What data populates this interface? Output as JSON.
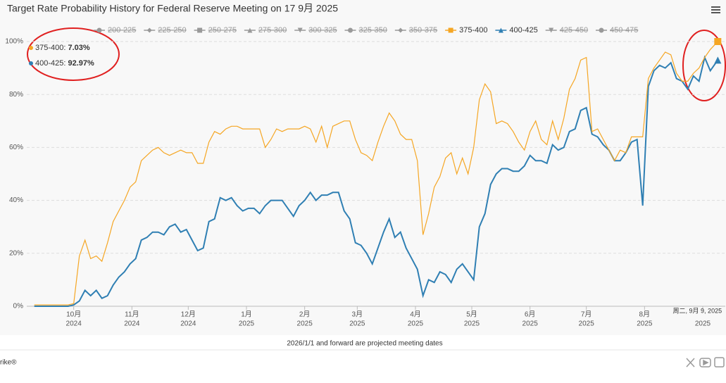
{
  "chart_data": {
    "type": "line",
    "stacking": "normal",
    "title": "Target Rate Probability History for Federal Reserve Meeting on 17 9月 2025",
    "footnote": "2026/1/1 and forward are projected meeting dates",
    "brand": "rike®",
    "crosshair_label": "周二, 9月 9, 2025",
    "tooltip_labels": [
      "7.03%",
      "92.97%"
    ],
    "xlim": [
      "2024-09-06",
      "2025-09-13"
    ],
    "ylim": [
      0,
      100
    ],
    "grid": true,
    "yticks": [
      {
        "value": 0,
        "label": "0%"
      },
      {
        "value": 20,
        "label": "20%"
      },
      {
        "value": 40,
        "label": "40%"
      },
      {
        "value": 60,
        "label": "60%"
      },
      {
        "value": 80,
        "label": "80%"
      },
      {
        "value": 100,
        "label": "100%"
      }
    ],
    "xticks": [
      {
        "value": "2024-10-01",
        "label": [
          "10月",
          "2024"
        ]
      },
      {
        "value": "2024-11-01",
        "label": [
          "11月",
          "2024"
        ]
      },
      {
        "value": "2024-12-01",
        "label": [
          "12月",
          "2024"
        ]
      },
      {
        "value": "2025-01-01",
        "label": [
          "1月",
          "2025"
        ]
      },
      {
        "value": "2025-02-01",
        "label": [
          "2月",
          "2025"
        ]
      },
      {
        "value": "2025-03-01",
        "label": [
          "3月",
          "2025"
        ]
      },
      {
        "value": "2025-04-01",
        "label": [
          "4月",
          "2025"
        ]
      },
      {
        "value": "2025-05-01",
        "label": [
          "5月",
          "2025"
        ]
      },
      {
        "value": "2025-06-01",
        "label": [
          "6月",
          "2025"
        ]
      },
      {
        "value": "2025-07-01",
        "label": [
          "7月",
          "2025"
        ]
      },
      {
        "value": "2025-08-01",
        "label": [
          "8月",
          "2025"
        ]
      },
      {
        "value": "2025-09-01",
        "label": [
          "2025"
        ]
      }
    ],
    "x": [
      "2024-09-10",
      "2024-09-13",
      "2024-09-16",
      "2024-09-19",
      "2024-09-22",
      "2024-09-25",
      "2024-09-28",
      "2024-10-01",
      "2024-10-04",
      "2024-10-07",
      "2024-10-10",
      "2024-10-13",
      "2024-10-16",
      "2024-10-19",
      "2024-10-22",
      "2024-10-25",
      "2024-10-28",
      "2024-10-31",
      "2024-11-03",
      "2024-11-06",
      "2024-11-09",
      "2024-11-12",
      "2024-11-15",
      "2024-11-18",
      "2024-11-21",
      "2024-11-24",
      "2024-11-27",
      "2024-11-30",
      "2024-12-03",
      "2024-12-06",
      "2024-12-09",
      "2024-12-12",
      "2024-12-15",
      "2024-12-18",
      "2024-12-21",
      "2024-12-24",
      "2024-12-27",
      "2024-12-30",
      "2025-01-02",
      "2025-01-05",
      "2025-01-08",
      "2025-01-11",
      "2025-01-14",
      "2025-01-17",
      "2025-01-20",
      "2025-01-23",
      "2025-01-26",
      "2025-01-29",
      "2025-02-01",
      "2025-02-04",
      "2025-02-07",
      "2025-02-10",
      "2025-02-13",
      "2025-02-16",
      "2025-02-19",
      "2025-02-22",
      "2025-02-25",
      "2025-02-28",
      "2025-03-03",
      "2025-03-06",
      "2025-03-09",
      "2025-03-12",
      "2025-03-15",
      "2025-03-18",
      "2025-03-21",
      "2025-03-24",
      "2025-03-27",
      "2025-03-30",
      "2025-04-02",
      "2025-04-05",
      "2025-04-08",
      "2025-04-11",
      "2025-04-14",
      "2025-04-17",
      "2025-04-20",
      "2025-04-23",
      "2025-04-26",
      "2025-04-29",
      "2025-05-02",
      "2025-05-05",
      "2025-05-08",
      "2025-05-11",
      "2025-05-14",
      "2025-05-17",
      "2025-05-20",
      "2025-05-23",
      "2025-05-26",
      "2025-05-29",
      "2025-06-01",
      "2025-06-04",
      "2025-06-07",
      "2025-06-10",
      "2025-06-13",
      "2025-06-16",
      "2025-06-19",
      "2025-06-22",
      "2025-06-25",
      "2025-06-28",
      "2025-07-01",
      "2025-07-04",
      "2025-07-07",
      "2025-07-10",
      "2025-07-13",
      "2025-07-16",
      "2025-07-19",
      "2025-07-22",
      "2025-07-25",
      "2025-07-28",
      "2025-07-31",
      "2025-08-03",
      "2025-08-06",
      "2025-08-09",
      "2025-08-12",
      "2025-08-15",
      "2025-08-18",
      "2025-08-21",
      "2025-08-24",
      "2025-08-27",
      "2025-08-30",
      "2025-09-02",
      "2025-09-05",
      "2025-09-09"
    ],
    "series": [
      {
        "name": "200-225",
        "symbol": "circle",
        "visible": false
      },
      {
        "name": "225-250",
        "symbol": "diamond",
        "visible": false
      },
      {
        "name": "250-275",
        "symbol": "square",
        "visible": false
      },
      {
        "name": "275-300",
        "symbol": "triangle",
        "visible": false
      },
      {
        "name": "300-325",
        "symbol": "triangle-down",
        "visible": false
      },
      {
        "name": "325-350",
        "symbol": "circle",
        "visible": false
      },
      {
        "name": "350-375",
        "symbol": "diamond",
        "visible": false
      },
      {
        "name": "375-400",
        "symbol": "square",
        "visible": true,
        "color": "#f5a623",
        "values": [
          0.5,
          0.5,
          0.5,
          0.5,
          0.5,
          0.5,
          0.5,
          0.5,
          17,
          19,
          14,
          13,
          14,
          20,
          24,
          25,
          27,
          29,
          29,
          30,
          31,
          31,
          32,
          31,
          27,
          27,
          31,
          29,
          33,
          33,
          32,
          30,
          33,
          24,
          27,
          27,
          30,
          31,
          30,
          30,
          32,
          22,
          23,
          27,
          26,
          30,
          33,
          29,
          28,
          24,
          22,
          26,
          18,
          25,
          26,
          34,
          37,
          39,
          35,
          37,
          39,
          40,
          40,
          40,
          44,
          37,
          41,
          45,
          41,
          23,
          25,
          36,
          36,
          44,
          49,
          36,
          40,
          37,
          50,
          48,
          49,
          35,
          19,
          18,
          17,
          15,
          11,
          6,
          9,
          15,
          8,
          7,
          9,
          4,
          11,
          16,
          19,
          19,
          19,
          1,
          3,
          2,
          0,
          0,
          4,
          0,
          2,
          1,
          26,
          3,
          1,
          2,
          6,
          3,
          2,
          0,
          3,
          1,
          5,
          0,
          8,
          7.03
        ]
      },
      {
        "name": "400-425",
        "symbol": "triangle",
        "visible": true,
        "color": "#2f7fb3",
        "values": [
          0,
          0,
          0,
          0,
          0,
          0,
          0,
          0.5,
          2,
          6,
          4,
          6,
          3,
          4,
          8,
          11,
          13,
          16,
          18,
          25,
          26,
          28,
          28,
          27,
          30,
          31,
          28,
          29,
          25,
          21,
          22,
          32,
          33,
          41,
          40,
          41,
          38,
          36,
          37,
          37,
          35,
          38,
          40,
          40,
          40,
          37,
          34,
          38,
          40,
          43,
          40,
          42,
          42,
          43,
          43,
          36,
          33,
          24,
          23,
          20,
          16,
          22,
          28,
          33,
          26,
          28,
          22,
          18,
          14,
          4,
          10,
          9,
          13,
          12,
          9,
          14,
          16,
          13,
          10,
          30,
          35,
          46,
          50,
          52,
          52,
          51,
          51,
          53,
          57,
          55,
          55,
          54,
          61,
          59,
          60,
          66,
          67,
          74,
          75,
          65,
          64,
          61,
          59,
          55,
          55,
          58,
          62,
          63,
          38,
          83,
          89,
          91,
          90,
          92,
          86,
          85,
          82,
          87,
          85,
          94,
          89,
          92.97
        ]
      },
      {
        "name": "425-450",
        "symbol": "triangle-down",
        "visible": false
      },
      {
        "name": "450-475",
        "symbol": "circle",
        "visible": false
      }
    ]
  }
}
